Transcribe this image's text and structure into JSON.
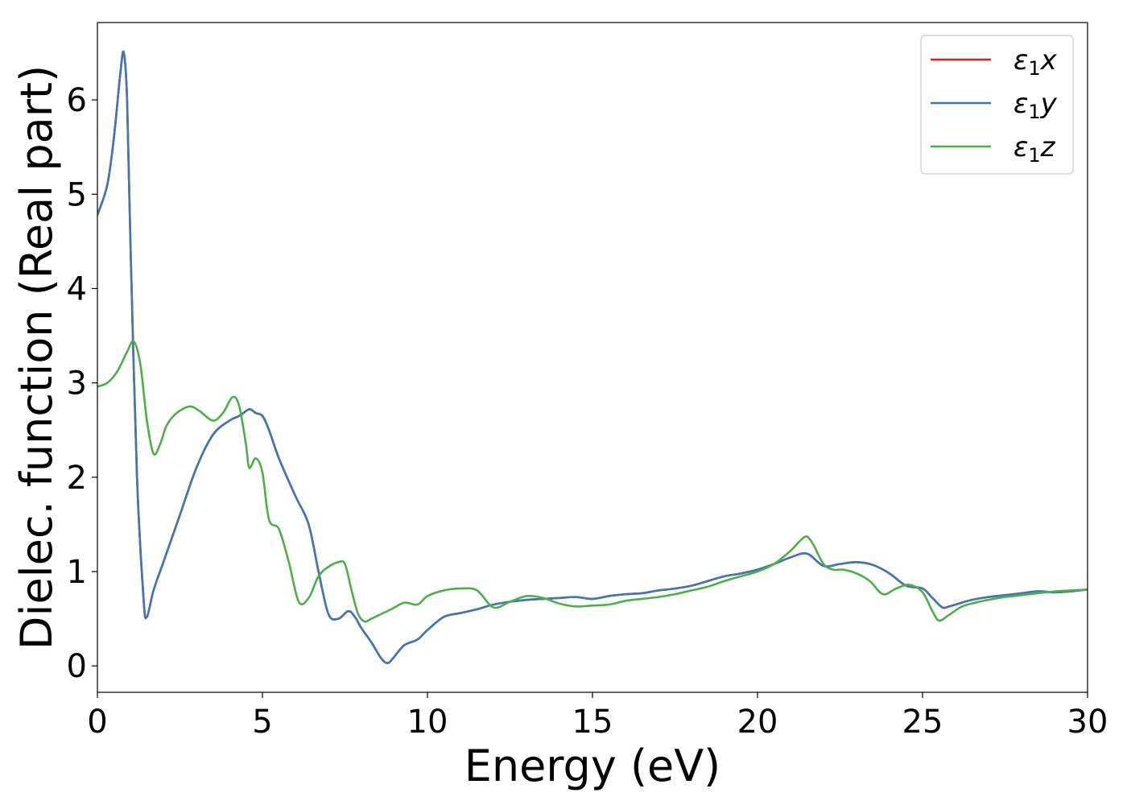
{
  "chart_data": {
    "type": "line",
    "xlabel": "Energy (eV)",
    "ylabel": "Dielec. function (Real part)",
    "xlim": [
      0,
      30
    ],
    "ylim": [
      -0.28,
      6.82
    ],
    "xticks": [
      0,
      5,
      10,
      15,
      20,
      25,
      30
    ],
    "yticks": [
      0,
      1,
      2,
      3,
      4,
      5,
      6
    ],
    "grid": false,
    "legend_position": "top-right",
    "series": [
      {
        "name": "ε1x",
        "legend": {
          "symbol": "ε",
          "subscript": "1",
          "component": "x"
        },
        "color": "#e41a1c",
        "x": [
          0,
          0.3,
          0.5,
          0.7,
          0.8,
          0.9,
          1.0,
          1.2,
          1.4,
          1.5,
          1.7,
          2.0,
          2.5,
          3.0,
          3.5,
          4.0,
          4.3,
          4.6,
          4.8,
          5.0,
          5.2,
          5.5,
          6.0,
          6.4,
          6.7,
          7.0,
          7.3,
          7.6,
          7.8,
          8.0,
          8.3,
          8.6,
          8.8,
          9.0,
          9.3,
          9.7,
          10.0,
          10.5,
          11.0,
          11.5,
          12.0,
          12.5,
          13.0,
          13.5,
          14.0,
          14.5,
          15.0,
          15.5,
          16.0,
          16.5,
          17.0,
          17.5,
          18.0,
          18.5,
          19.0,
          19.5,
          20.0,
          20.5,
          21.0,
          21.5,
          22.0,
          22.5,
          23.0,
          23.5,
          24.0,
          24.5,
          25.0,
          25.3,
          25.6,
          25.8,
          26.0,
          26.5,
          27.0,
          27.5,
          28.0,
          28.5,
          29.0,
          29.5,
          30.0
        ],
        "y": [
          4.78,
          5.1,
          5.6,
          6.3,
          6.5,
          6.0,
          4.5,
          2.0,
          0.7,
          0.52,
          0.8,
          1.1,
          1.6,
          2.1,
          2.45,
          2.6,
          2.65,
          2.72,
          2.68,
          2.65,
          2.5,
          2.2,
          1.8,
          1.5,
          1.0,
          0.55,
          0.5,
          0.58,
          0.52,
          0.4,
          0.25,
          0.08,
          0.03,
          0.1,
          0.22,
          0.28,
          0.38,
          0.52,
          0.56,
          0.6,
          0.65,
          0.68,
          0.7,
          0.71,
          0.72,
          0.73,
          0.71,
          0.74,
          0.76,
          0.77,
          0.8,
          0.82,
          0.85,
          0.9,
          0.95,
          0.98,
          1.02,
          1.08,
          1.15,
          1.19,
          1.06,
          1.08,
          1.1,
          1.07,
          0.98,
          0.85,
          0.82,
          0.72,
          0.62,
          0.63,
          0.65,
          0.7,
          0.73,
          0.75,
          0.77,
          0.79,
          0.78,
          0.79,
          0.81
        ]
      },
      {
        "name": "ε1y",
        "legend": {
          "symbol": "ε",
          "subscript": "1",
          "component": "y"
        },
        "color": "#3f78b5",
        "x": [
          0,
          0.3,
          0.5,
          0.7,
          0.8,
          0.9,
          1.0,
          1.2,
          1.4,
          1.5,
          1.7,
          2.0,
          2.5,
          3.0,
          3.5,
          4.0,
          4.3,
          4.6,
          4.8,
          5.0,
          5.2,
          5.5,
          6.0,
          6.4,
          6.7,
          7.0,
          7.3,
          7.6,
          7.8,
          8.0,
          8.3,
          8.6,
          8.8,
          9.0,
          9.3,
          9.7,
          10.0,
          10.5,
          11.0,
          11.5,
          12.0,
          12.5,
          13.0,
          13.5,
          14.0,
          14.5,
          15.0,
          15.5,
          16.0,
          16.5,
          17.0,
          17.5,
          18.0,
          18.5,
          19.0,
          19.5,
          20.0,
          20.5,
          21.0,
          21.5,
          22.0,
          22.5,
          23.0,
          23.5,
          24.0,
          24.5,
          25.0,
          25.3,
          25.6,
          25.8,
          26.0,
          26.5,
          27.0,
          27.5,
          28.0,
          28.5,
          29.0,
          29.5,
          30.0
        ],
        "y": [
          4.78,
          5.1,
          5.6,
          6.3,
          6.5,
          6.0,
          4.5,
          2.0,
          0.7,
          0.52,
          0.8,
          1.1,
          1.6,
          2.1,
          2.45,
          2.6,
          2.65,
          2.72,
          2.68,
          2.65,
          2.5,
          2.2,
          1.8,
          1.5,
          1.0,
          0.55,
          0.5,
          0.58,
          0.52,
          0.4,
          0.25,
          0.08,
          0.03,
          0.1,
          0.22,
          0.28,
          0.38,
          0.52,
          0.56,
          0.6,
          0.65,
          0.68,
          0.7,
          0.71,
          0.72,
          0.73,
          0.71,
          0.74,
          0.76,
          0.77,
          0.8,
          0.82,
          0.85,
          0.9,
          0.95,
          0.98,
          1.02,
          1.08,
          1.15,
          1.19,
          1.06,
          1.08,
          1.1,
          1.07,
          0.98,
          0.85,
          0.82,
          0.72,
          0.62,
          0.63,
          0.65,
          0.7,
          0.73,
          0.75,
          0.77,
          0.79,
          0.78,
          0.79,
          0.81
        ]
      },
      {
        "name": "ε1z",
        "legend": {
          "symbol": "ε",
          "subscript": "1",
          "component": "z"
        },
        "color": "#4daf4a",
        "x": [
          0,
          0.3,
          0.6,
          0.9,
          1.1,
          1.3,
          1.5,
          1.7,
          1.9,
          2.1,
          2.4,
          2.8,
          3.1,
          3.5,
          3.8,
          4.1,
          4.3,
          4.5,
          4.6,
          4.8,
          5.0,
          5.2,
          5.5,
          5.8,
          6.1,
          6.4,
          6.7,
          7.0,
          7.3,
          7.5,
          7.7,
          7.9,
          8.1,
          8.3,
          8.6,
          8.9,
          9.3,
          9.7,
          10.0,
          10.5,
          11.0,
          11.5,
          12.0,
          12.5,
          13.0,
          13.5,
          14.0,
          14.5,
          15.0,
          15.5,
          16.0,
          16.5,
          17.0,
          17.5,
          18.0,
          18.5,
          19.0,
          19.5,
          20.0,
          20.5,
          21.0,
          21.3,
          21.5,
          21.7,
          22.0,
          22.3,
          22.6,
          23.0,
          23.4,
          23.8,
          24.2,
          24.6,
          25.0,
          25.3,
          25.5,
          25.8,
          26.2,
          26.6,
          27.0,
          27.5,
          28.0,
          28.5,
          29.0,
          29.5,
          30.0
        ],
        "y": [
          2.96,
          3.0,
          3.12,
          3.33,
          3.44,
          3.2,
          2.6,
          2.25,
          2.35,
          2.55,
          2.68,
          2.75,
          2.7,
          2.6,
          2.68,
          2.85,
          2.75,
          2.35,
          2.1,
          2.2,
          2.05,
          1.55,
          1.45,
          1.1,
          0.68,
          0.72,
          0.95,
          1.05,
          1.1,
          1.08,
          0.8,
          0.55,
          0.47,
          0.5,
          0.55,
          0.6,
          0.67,
          0.65,
          0.74,
          0.8,
          0.82,
          0.8,
          0.62,
          0.68,
          0.74,
          0.72,
          0.66,
          0.63,
          0.64,
          0.65,
          0.69,
          0.71,
          0.73,
          0.76,
          0.8,
          0.84,
          0.9,
          0.95,
          1.0,
          1.08,
          1.22,
          1.33,
          1.37,
          1.28,
          1.08,
          1.02,
          1.02,
          0.98,
          0.9,
          0.76,
          0.82,
          0.86,
          0.78,
          0.58,
          0.48,
          0.54,
          0.63,
          0.67,
          0.7,
          0.73,
          0.75,
          0.77,
          0.79,
          0.8,
          0.81
        ]
      }
    ]
  }
}
